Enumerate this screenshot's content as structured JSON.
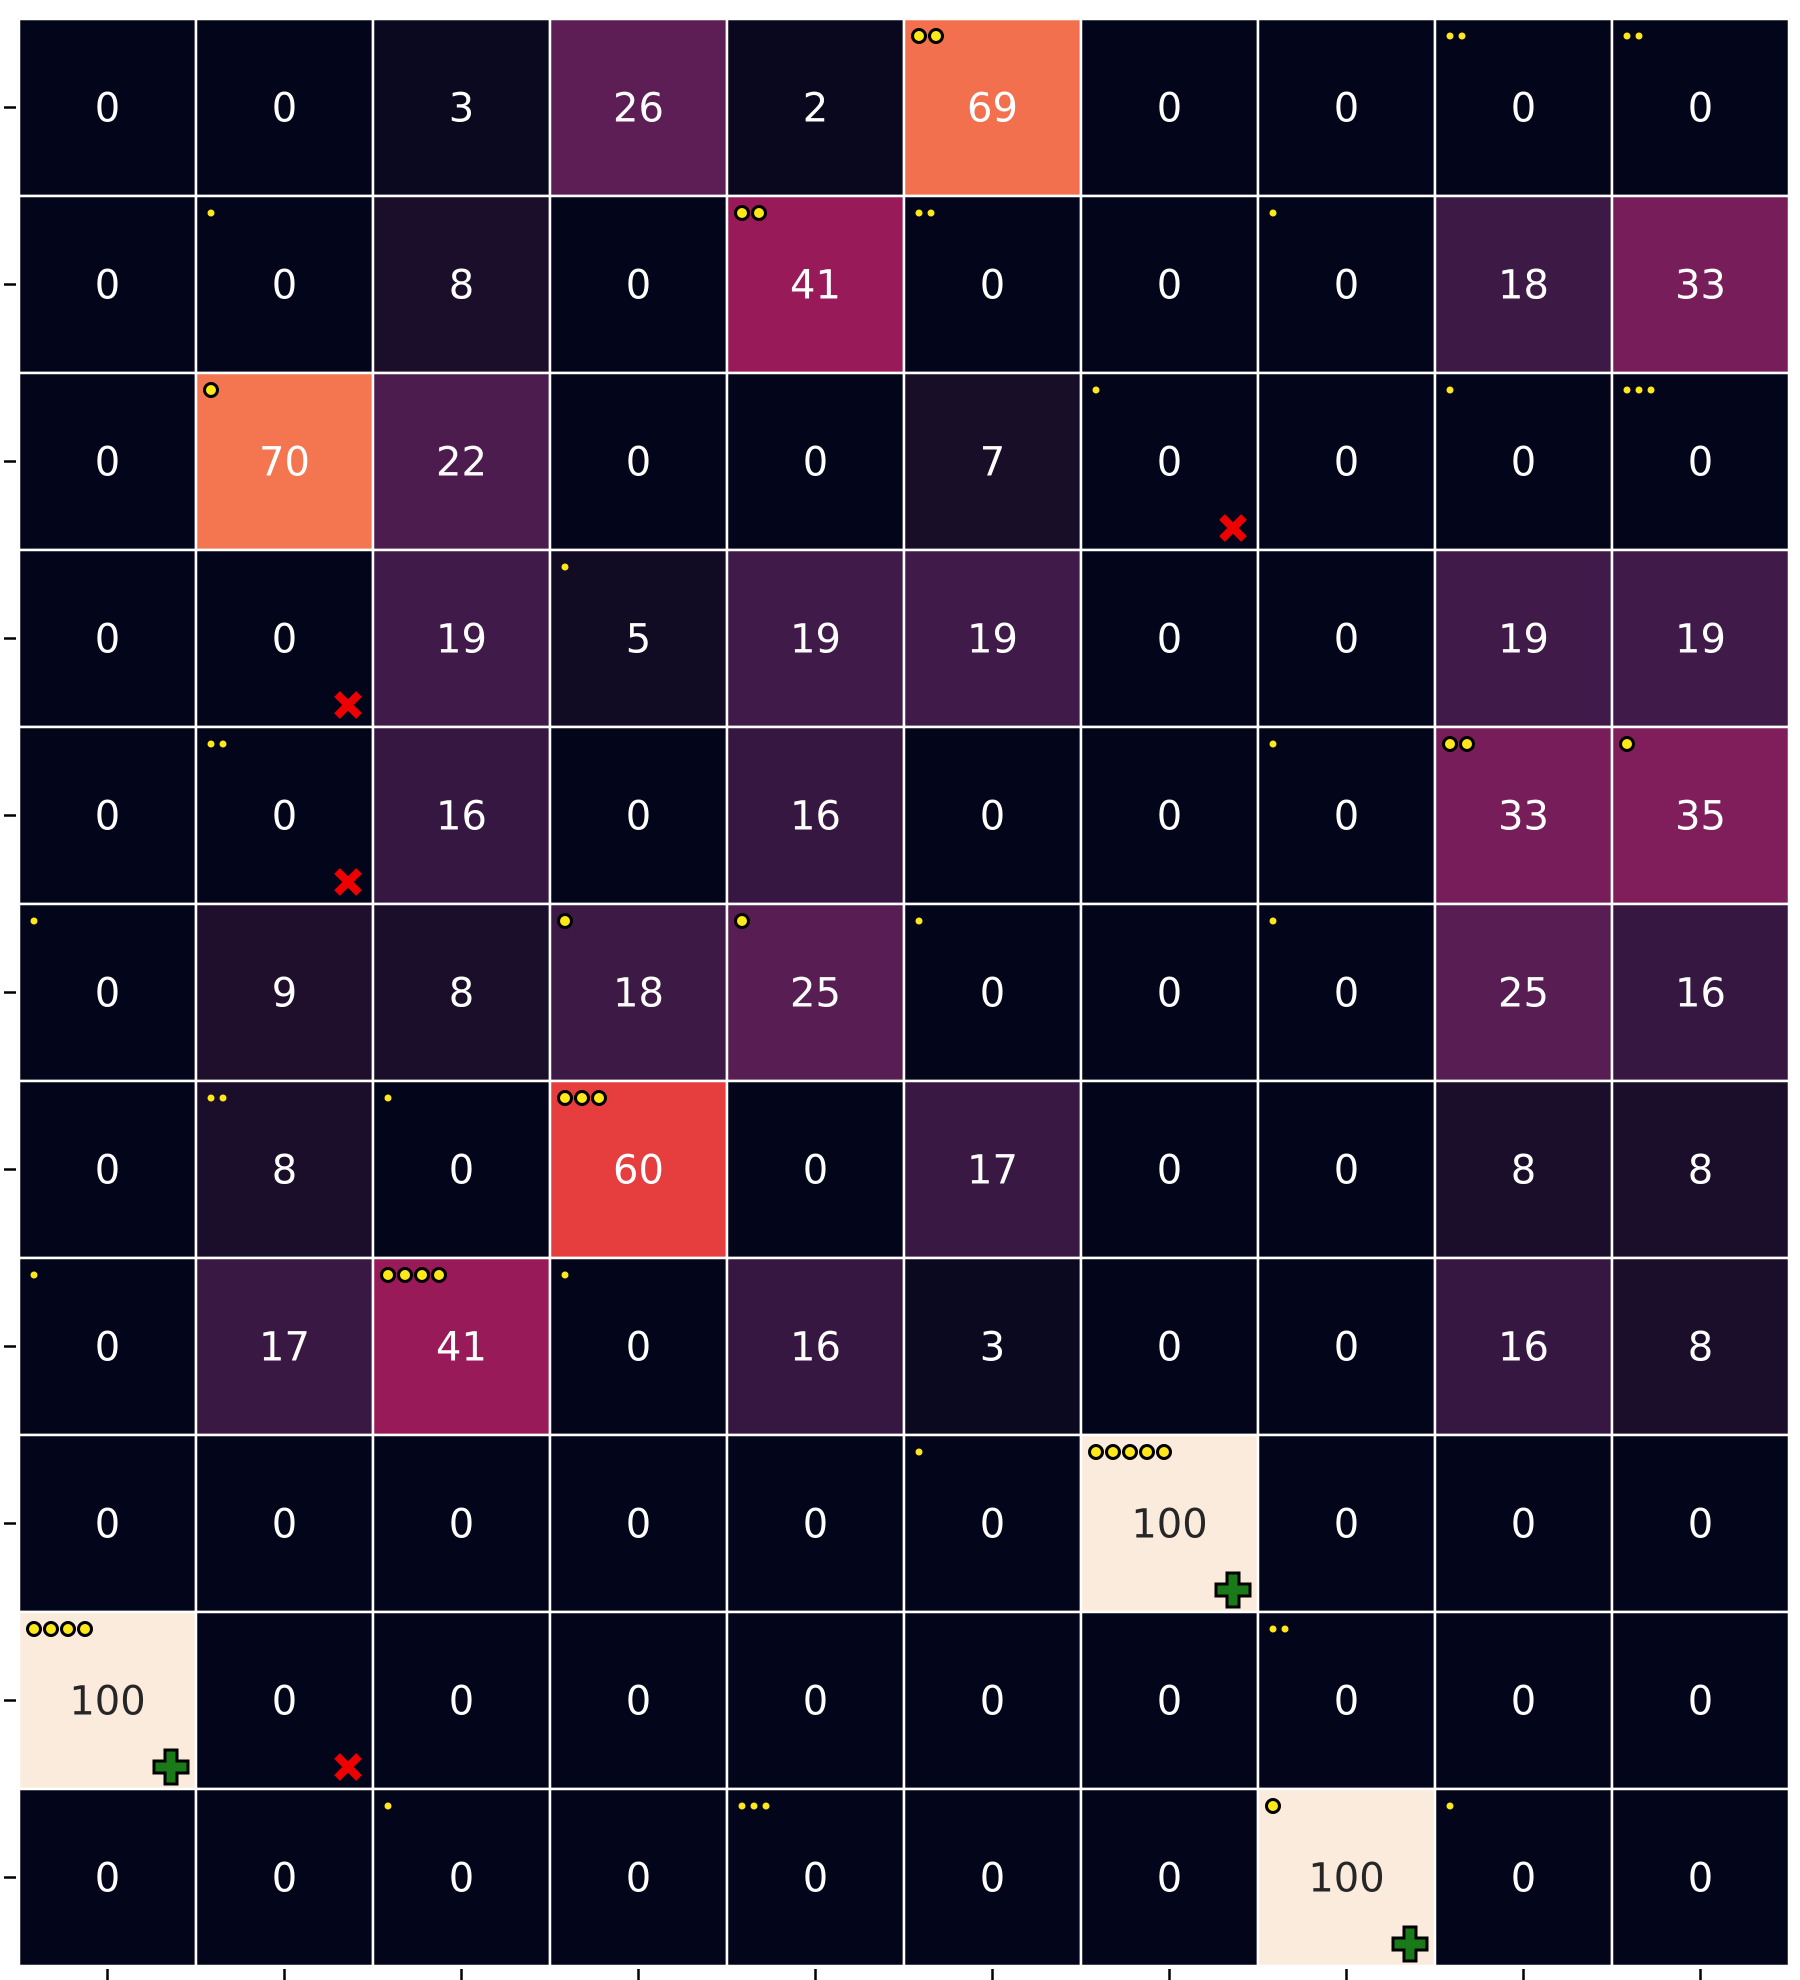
{
  "chart_data": {
    "type": "heatmap",
    "title": "",
    "xlabel": "",
    "ylabel": "",
    "rows": 11,
    "cols": 10,
    "vmin": 0,
    "vmax": 100,
    "colormap": "rocket",
    "values": [
      [
        0,
        0,
        3,
        26,
        2,
        69,
        0,
        0,
        0,
        0
      ],
      [
        0,
        0,
        8,
        0,
        41,
        0,
        0,
        0,
        18,
        33
      ],
      [
        0,
        70,
        22,
        0,
        0,
        7,
        0,
        0,
        0,
        0
      ],
      [
        0,
        0,
        19,
        5,
        19,
        19,
        0,
        0,
        19,
        19
      ],
      [
        0,
        0,
        16,
        0,
        16,
        0,
        0,
        0,
        33,
        35
      ],
      [
        0,
        9,
        8,
        18,
        25,
        0,
        0,
        0,
        25,
        16
      ],
      [
        0,
        8,
        0,
        60,
        0,
        17,
        0,
        0,
        8,
        8
      ],
      [
        0,
        17,
        41,
        0,
        16,
        3,
        0,
        0,
        16,
        8
      ],
      [
        0,
        0,
        0,
        0,
        0,
        0,
        100,
        0,
        0,
        0
      ],
      [
        100,
        0,
        0,
        0,
        0,
        0,
        0,
        0,
        0,
        0
      ],
      [
        0,
        0,
        0,
        0,
        0,
        0,
        0,
        100,
        0,
        0
      ]
    ],
    "dots": [
      [
        0,
        0,
        0,
        0,
        0,
        2,
        0,
        0,
        2,
        2
      ],
      [
        0,
        1,
        0,
        0,
        2,
        2,
        0,
        1,
        0,
        0
      ],
      [
        0,
        1,
        0,
        0,
        0,
        0,
        1,
        0,
        1,
        3
      ],
      [
        0,
        0,
        0,
        1,
        0,
        0,
        0,
        0,
        0,
        0
      ],
      [
        0,
        2,
        0,
        0,
        0,
        0,
        0,
        1,
        2,
        1
      ],
      [
        1,
        0,
        0,
        1,
        1,
        1,
        0,
        1,
        0,
        0
      ],
      [
        0,
        2,
        1,
        3,
        0,
        0,
        0,
        0,
        0,
        0
      ],
      [
        1,
        0,
        4,
        1,
        0,
        0,
        0,
        0,
        0,
        0
      ],
      [
        0,
        0,
        0,
        0,
        0,
        1,
        5,
        0,
        0,
        0
      ],
      [
        4,
        0,
        0,
        0,
        0,
        0,
        0,
        2,
        0,
        0
      ],
      [
        0,
        0,
        1,
        0,
        3,
        0,
        0,
        1,
        1,
        0
      ]
    ],
    "large_dot_cells": [
      [
        0,
        5
      ],
      [
        1,
        4
      ],
      [
        2,
        1
      ],
      [
        4,
        8
      ],
      [
        4,
        9
      ],
      [
        5,
        3
      ],
      [
        5,
        4
      ],
      [
        6,
        3
      ],
      [
        7,
        2
      ],
      [
        8,
        6
      ],
      [
        9,
        0
      ],
      [
        10,
        7
      ]
    ],
    "x_markers": [
      [
        2,
        6
      ],
      [
        3,
        1
      ],
      [
        4,
        1
      ],
      [
        9,
        1
      ]
    ],
    "plus_markers": [
      [
        8,
        6
      ],
      [
        9,
        0
      ],
      [
        10,
        7
      ]
    ],
    "colors": {
      "background": "#ffffff",
      "grid": "#ffffff",
      "dot_fill": "#ffe81a",
      "dot_stroke": "#000000",
      "x_marker": "#ee0000",
      "plus_marker": "#1a7a1a",
      "light_text": "#ffffff",
      "dark_text": "#262626",
      "tick": "#000000"
    }
  }
}
